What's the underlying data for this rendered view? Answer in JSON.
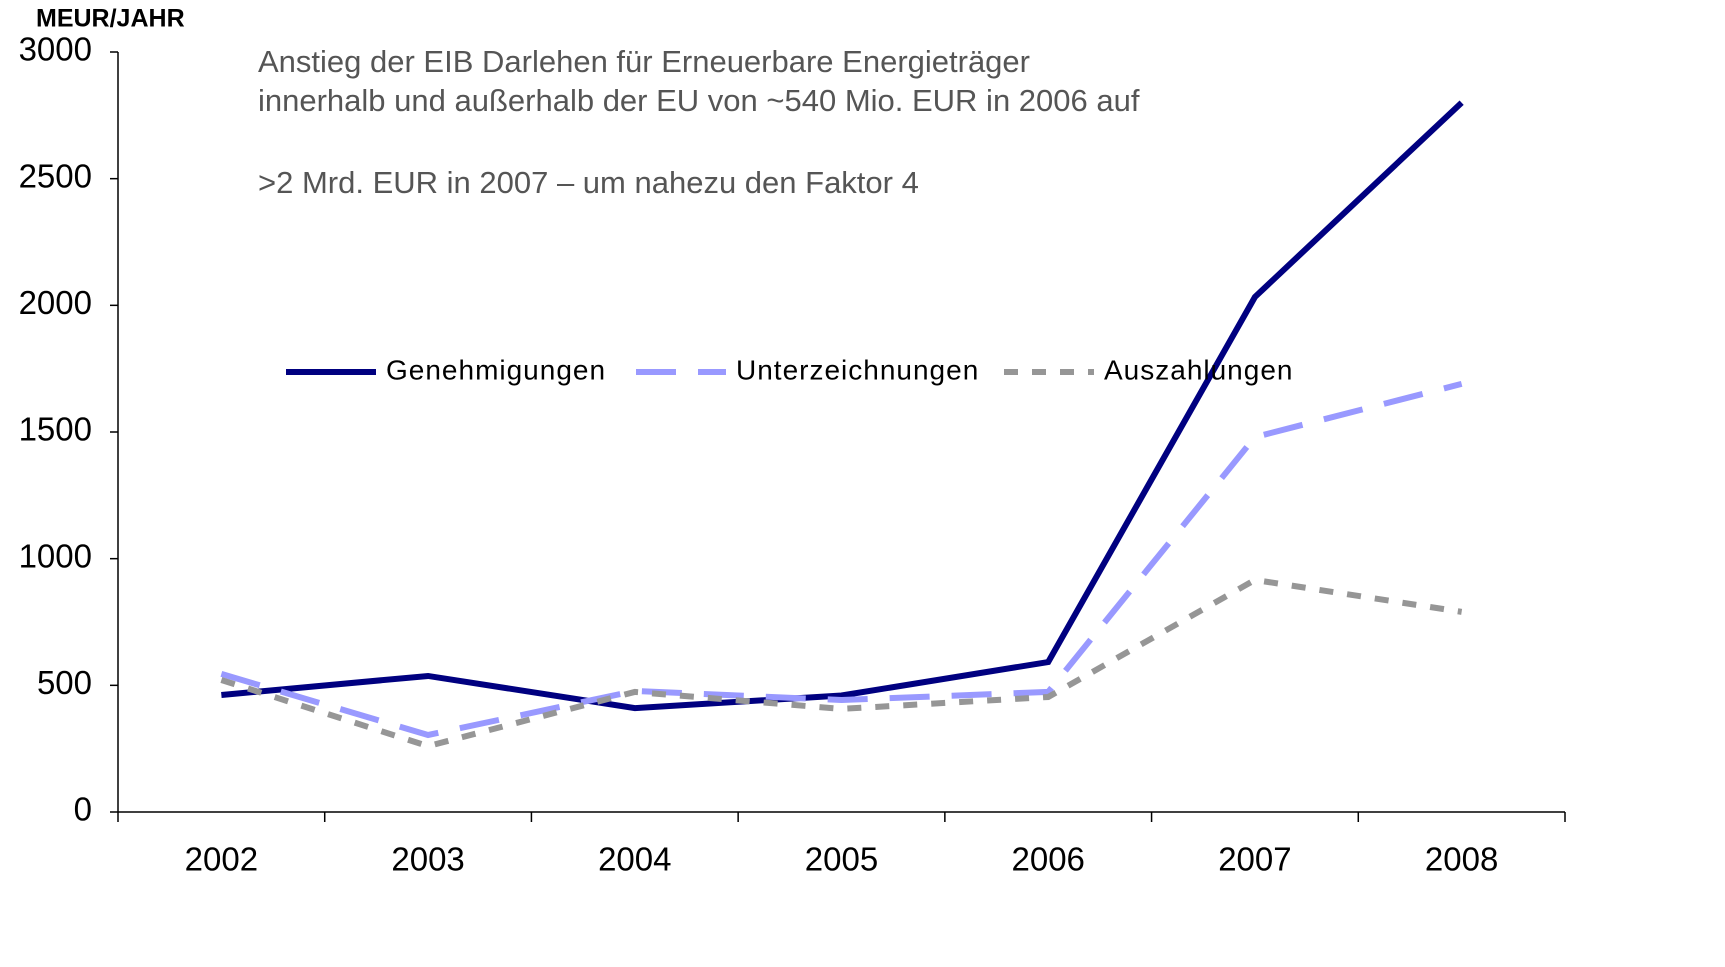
{
  "chart_data": {
    "type": "line",
    "y_label": "MEUR/JAHR",
    "annotations": [
      "Anstieg der EIB Darlehen für Erneuerbare Energieträger",
      "innerhalb und außerhalb der EU von ~540 Mio. EUR in 2006 auf",
      ">2 Mrd. EUR in 2007 – um nahezu den Faktor 4"
    ],
    "categories": [
      "2002",
      "2003",
      "2004",
      "2005",
      "2006",
      "2007",
      "2008"
    ],
    "series": [
      {
        "name": "Genehmigungen",
        "color": "#000080",
        "dash": "none",
        "values": [
          462,
          537,
          410,
          460,
          592,
          2033,
          2800
        ]
      },
      {
        "name": "Unterzeichnungen",
        "color": "#9999ff",
        "dash": "long",
        "values": [
          545,
          304,
          478,
          442,
          474,
          1480,
          1690
        ]
      },
      {
        "name": "Auszahlungen",
        "color": "#969696",
        "dash": "short",
        "values": [
          521,
          260,
          474,
          407,
          454,
          916,
          790
        ]
      }
    ],
    "ylim": [
      0,
      3000
    ],
    "yticks": [
      0,
      500,
      1000,
      1500,
      2000,
      2500,
      3000
    ],
    "grid": false,
    "legend": "center"
  }
}
